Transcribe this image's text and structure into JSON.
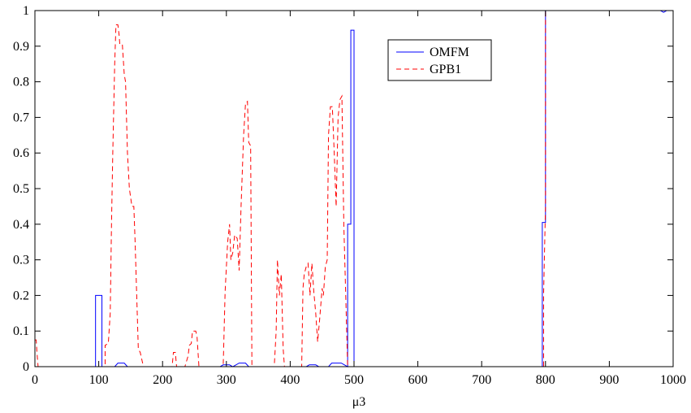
{
  "chart_data": {
    "type": "line",
    "title": "",
    "xlabel": "μ3",
    "ylabel": "",
    "xlim": [
      0,
      1000
    ],
    "ylim": [
      0,
      1
    ],
    "xticks": [
      0,
      100,
      200,
      300,
      400,
      500,
      600,
      700,
      800,
      900,
      1000
    ],
    "yticks": [
      0,
      0.1,
      0.2,
      0.3,
      0.4,
      0.5,
      0.6,
      0.7,
      0.8,
      0.9,
      1
    ],
    "xtick_labels": [
      "0",
      "100",
      "200",
      "300",
      "400",
      "500",
      "600",
      "700",
      "800",
      "900",
      "1000"
    ],
    "ytick_labels": [
      "0",
      "0.1",
      "0.2",
      "0.3",
      "0.4",
      "0.5",
      "0.6",
      "0.7",
      "0.8",
      "0.9",
      "1"
    ],
    "grid": false,
    "legend_position": "top-center",
    "series": [
      {
        "name": "OMFM",
        "color": "#0000ff",
        "style": "solid",
        "points": [
          [
            0,
            0
          ],
          [
            95,
            0
          ],
          [
            95,
            0.2
          ],
          [
            105,
            0.2
          ],
          [
            105,
            0
          ],
          [
            125,
            0
          ],
          [
            130,
            0.01
          ],
          [
            140,
            0.01
          ],
          [
            145,
            0
          ],
          [
            290,
            0
          ],
          [
            295,
            0.005
          ],
          [
            305,
            0.005
          ],
          [
            310,
            0
          ],
          [
            320,
            0.01
          ],
          [
            330,
            0.01
          ],
          [
            335,
            0
          ],
          [
            425,
            0
          ],
          [
            430,
            0.005
          ],
          [
            440,
            0.005
          ],
          [
            445,
            0
          ],
          [
            460,
            0
          ],
          [
            465,
            0.01
          ],
          [
            480,
            0.01
          ],
          [
            485,
            0.005
          ],
          [
            490,
            0
          ],
          [
            490,
            0.4
          ],
          [
            495,
            0.4
          ],
          [
            495,
            0.945
          ],
          [
            500,
            0.945
          ],
          [
            500,
            0
          ],
          [
            795,
            0
          ],
          [
            795,
            0.405
          ],
          [
            800,
            0.405
          ],
          [
            800,
            1
          ],
          [
            980,
            1
          ],
          [
            985,
            0.995
          ],
          [
            990,
            1
          ],
          [
            1000,
            1
          ]
        ]
      },
      {
        "name": "GPB1",
        "color": "#ff0000",
        "style": "dashed",
        "points": [
          [
            0,
            0.075
          ],
          [
            2,
            0.075
          ],
          [
            3,
            0.045
          ],
          [
            5,
            0
          ],
          [
            110,
            0
          ],
          [
            110,
            0.06
          ],
          [
            115,
            0.065
          ],
          [
            118,
            0.15
          ],
          [
            120,
            0.4
          ],
          [
            122,
            0.6
          ],
          [
            125,
            0.85
          ],
          [
            127,
            0.96
          ],
          [
            130,
            0.96
          ],
          [
            132,
            0.93
          ],
          [
            133,
            0.905
          ],
          [
            137,
            0.905
          ],
          [
            140,
            0.82
          ],
          [
            142,
            0.8
          ],
          [
            145,
            0.6
          ],
          [
            148,
            0.5
          ],
          [
            152,
            0.45
          ],
          [
            155,
            0.45
          ],
          [
            157,
            0.35
          ],
          [
            162,
            0.05
          ],
          [
            165,
            0.04
          ],
          [
            170,
            0
          ],
          [
            215,
            0
          ],
          [
            217,
            0.04
          ],
          [
            220,
            0.04
          ],
          [
            222,
            0
          ],
          [
            235,
            0
          ],
          [
            240,
            0.03
          ],
          [
            242,
            0.06
          ],
          [
            245,
            0.065
          ],
          [
            247,
            0.1
          ],
          [
            252,
            0.1
          ],
          [
            254,
            0.085
          ],
          [
            257,
            0
          ],
          [
            295,
            0
          ],
          [
            298,
            0.21
          ],
          [
            302,
            0.35
          ],
          [
            305,
            0.4
          ],
          [
            307,
            0.3
          ],
          [
            310,
            0.32
          ],
          [
            313,
            0.37
          ],
          [
            317,
            0.36
          ],
          [
            320,
            0.27
          ],
          [
            323,
            0.45
          ],
          [
            327,
            0.65
          ],
          [
            330,
            0.74
          ],
          [
            333,
            0.745
          ],
          [
            335,
            0.63
          ],
          [
            338,
            0.62
          ],
          [
            340,
            0
          ],
          [
            375,
            0
          ],
          [
            378,
            0.1
          ],
          [
            380,
            0.3
          ],
          [
            383,
            0.2
          ],
          [
            386,
            0.26
          ],
          [
            389,
            0.05
          ],
          [
            391,
            0
          ],
          [
            418,
            0
          ],
          [
            420,
            0.22
          ],
          [
            422,
            0.26
          ],
          [
            425,
            0.28
          ],
          [
            428,
            0.29
          ],
          [
            431,
            0.2
          ],
          [
            434,
            0.29
          ],
          [
            437,
            0.21
          ],
          [
            440,
            0.15
          ],
          [
            443,
            0.07
          ],
          [
            446,
            0.13
          ],
          [
            450,
            0.22
          ],
          [
            452,
            0.2
          ],
          [
            455,
            0.28
          ],
          [
            458,
            0.3
          ],
          [
            460,
            0.65
          ],
          [
            463,
            0.73
          ],
          [
            466,
            0.73
          ],
          [
            469,
            0.6
          ],
          [
            472,
            0.45
          ],
          [
            475,
            0.7
          ],
          [
            478,
            0.75
          ],
          [
            481,
            0.76
          ],
          [
            484,
            0.4
          ],
          [
            487,
            0.2
          ],
          [
            490,
            0
          ],
          [
            797,
            0
          ],
          [
            797,
            0.2
          ],
          [
            800,
            0.45
          ],
          [
            800,
            1
          ],
          [
            1000,
            1
          ]
        ]
      }
    ]
  }
}
